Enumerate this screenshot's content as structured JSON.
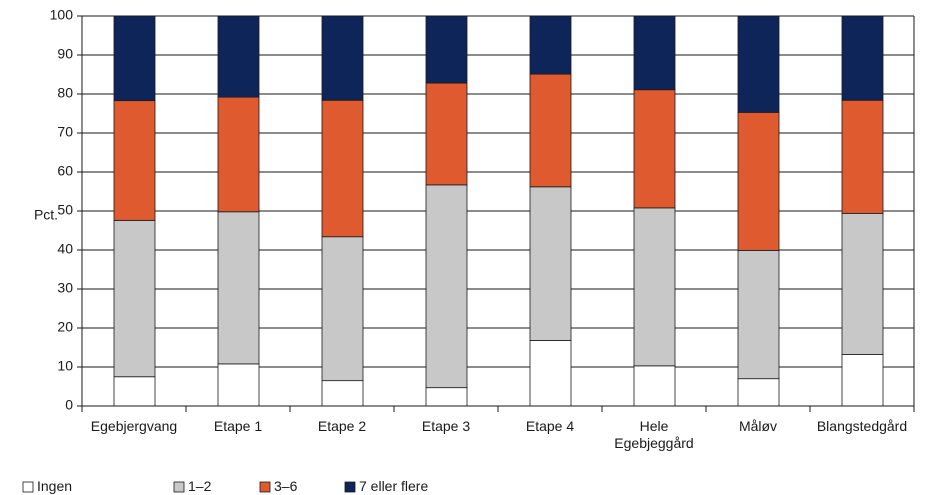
{
  "chart_data": {
    "type": "bar",
    "stacked": true,
    "ylabel": "Pct.",
    "ylim": [
      0,
      100
    ],
    "yticks": [
      0,
      10,
      20,
      30,
      40,
      50,
      60,
      70,
      80,
      90,
      100
    ],
    "grid": true,
    "legend_position": "bottom-left",
    "categories": [
      [
        "Egebjergvang"
      ],
      [
        "Etape 1"
      ],
      [
        "Etape 2"
      ],
      [
        "Etape 3"
      ],
      [
        "Etape 4"
      ],
      [
        "Hele",
        "Egebjeggård"
      ],
      [
        "Måløv"
      ],
      [
        "Blangstedgård"
      ]
    ],
    "series": [
      {
        "name": "Ingen",
        "color": "#ffffff",
        "values": [
          7.5,
          10.8,
          6.5,
          4.7,
          16.8,
          10.3,
          7.0,
          13.2
        ]
      },
      {
        "name": "1–2",
        "color": "#c8c8c8",
        "values": [
          40.1,
          39.0,
          36.9,
          52.0,
          39.4,
          40.5,
          32.9,
          36.2
        ]
      },
      {
        "name": "3–6",
        "color": "#e05a2f",
        "values": [
          30.7,
          29.4,
          35.0,
          26.1,
          28.9,
          30.3,
          35.4,
          29.0
        ]
      },
      {
        "name": "7 eller flere",
        "color": "#0d2559",
        "values": [
          21.7,
          20.8,
          21.6,
          17.2,
          14.9,
          18.9,
          24.7,
          21.6
        ]
      }
    ]
  }
}
